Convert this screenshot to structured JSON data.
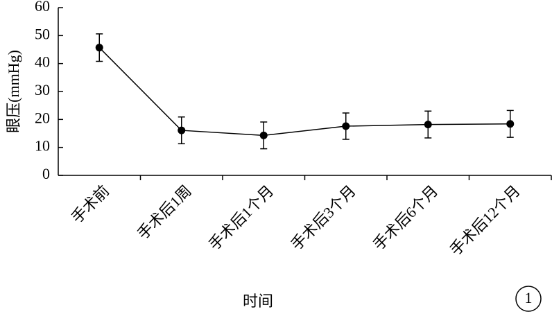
{
  "chart_data": {
    "type": "line",
    "y_label": "眼压(mmHg)",
    "x_label": "时间",
    "annotation": "1",
    "categories": [
      "手术前",
      "手术后1周",
      "手术后1个月",
      "手术后3个月",
      "手术后6个月",
      "手术后12个月"
    ],
    "values": [
      45.7,
      16.1,
      14.3,
      17.6,
      18.2,
      18.4
    ],
    "errors": [
      4.9,
      4.8,
      4.8,
      4.7,
      4.8,
      4.8
    ],
    "color": "#000000",
    "ylim": [
      0,
      60
    ],
    "yticks": [
      0,
      10,
      20,
      30,
      40,
      50,
      60
    ],
    "grid": false
  }
}
